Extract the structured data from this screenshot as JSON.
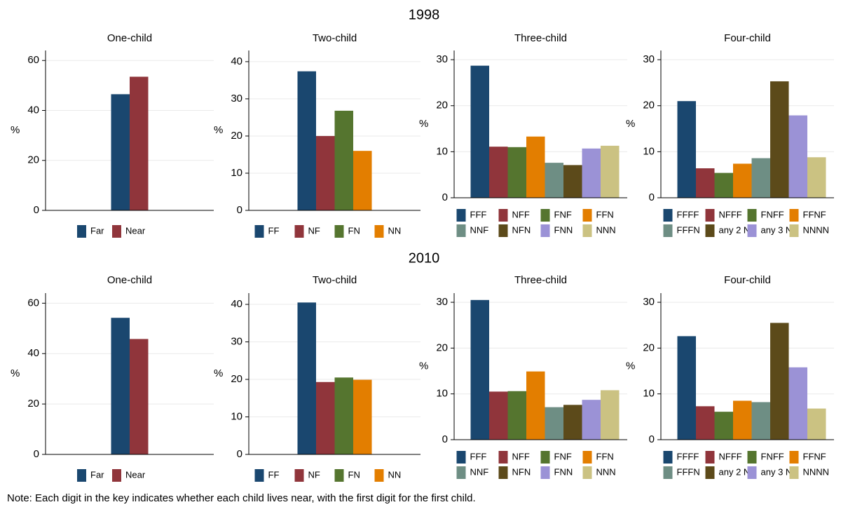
{
  "row_titles": [
    "1998",
    "2010"
  ],
  "note": "Note: Each digit in the key indicates whether each child lives near, with the first digit for the first child.",
  "chart_data": [
    {
      "type": "bar",
      "title": "One-child",
      "ylabel": "%",
      "categories": [
        "Far",
        "Near"
      ],
      "values": [
        46.5,
        53.5
      ],
      "colors": [
        "#1a476f",
        "#90353b"
      ],
      "ylim": [
        0,
        64
      ],
      "yticks": [
        0,
        20,
        40,
        60
      ],
      "grid": true,
      "legend": "bottom"
    },
    {
      "type": "bar",
      "title": "Two-child",
      "ylabel": "%",
      "categories": [
        "FF",
        "NF",
        "FN",
        "NN"
      ],
      "values": [
        37.4,
        20,
        26.8,
        16
      ],
      "colors": [
        "#1a476f",
        "#90353b",
        "#55752f",
        "#e37e00"
      ],
      "ylim": [
        0,
        43
      ],
      "yticks": [
        0,
        10,
        20,
        30,
        40
      ],
      "grid": true,
      "legend": "bottom"
    },
    {
      "type": "bar",
      "title": "Three-child",
      "ylabel": "%",
      "categories": [
        "FFF",
        "NFF",
        "FNF",
        "FFN",
        "NNF",
        "NFN",
        "FNN",
        "NNN"
      ],
      "values": [
        28.7,
        11.1,
        11,
        13.3,
        7.6,
        7.1,
        10.7,
        11.3
      ],
      "colors": [
        "#1a476f",
        "#90353b",
        "#55752f",
        "#e37e00",
        "#6e8e84",
        "#5c4a1a",
        "#9b92d6",
        "#cbc282"
      ],
      "ylim": [
        0,
        32
      ],
      "yticks": [
        0,
        10,
        20,
        30
      ],
      "grid": true,
      "legend": "bottom"
    },
    {
      "type": "bar",
      "title": "Four-child",
      "ylabel": "%",
      "categories": [
        "FFFF",
        "NFFF",
        "FNFF",
        "FFNF",
        "FFFN",
        "any 2 N",
        "any 3 N",
        "NNNN"
      ],
      "values": [
        21,
        6.4,
        5.4,
        7.4,
        8.6,
        25.3,
        17.9,
        8.8
      ],
      "colors": [
        "#1a476f",
        "#90353b",
        "#55752f",
        "#e37e00",
        "#6e8e84",
        "#5c4a1a",
        "#9b92d6",
        "#cbc282"
      ],
      "ylim": [
        0,
        32
      ],
      "yticks": [
        0,
        10,
        20,
        30
      ],
      "grid": true,
      "legend": "bottom"
    },
    {
      "type": "bar",
      "title": "One-child",
      "ylabel": "%",
      "categories": [
        "Far",
        "Near"
      ],
      "values": [
        54.2,
        45.8
      ],
      "colors": [
        "#1a476f",
        "#90353b"
      ],
      "ylim": [
        0,
        64
      ],
      "yticks": [
        0,
        20,
        40,
        60
      ],
      "grid": true,
      "legend": "bottom"
    },
    {
      "type": "bar",
      "title": "Two-child",
      "ylabel": "%",
      "categories": [
        "FF",
        "NF",
        "FN",
        "NN"
      ],
      "values": [
        40.5,
        19.3,
        20.5,
        19.9
      ],
      "colors": [
        "#1a476f",
        "#90353b",
        "#55752f",
        "#e37e00"
      ],
      "ylim": [
        0,
        43
      ],
      "yticks": [
        0,
        10,
        20,
        30,
        40
      ],
      "grid": true,
      "legend": "bottom"
    },
    {
      "type": "bar",
      "title": "Three-child",
      "ylabel": "%",
      "categories": [
        "FFF",
        "NFF",
        "FNF",
        "FFN",
        "NNF",
        "NFN",
        "FNN",
        "NNN"
      ],
      "values": [
        30.5,
        10.5,
        10.6,
        14.9,
        7.1,
        7.6,
        8.7,
        10.8
      ],
      "colors": [
        "#1a476f",
        "#90353b",
        "#55752f",
        "#e37e00",
        "#6e8e84",
        "#5c4a1a",
        "#9b92d6",
        "#cbc282"
      ],
      "ylim": [
        0,
        32
      ],
      "yticks": [
        0,
        10,
        20,
        30
      ],
      "grid": true,
      "legend": "bottom"
    },
    {
      "type": "bar",
      "title": "Four-child",
      "ylabel": "%",
      "categories": [
        "FFFF",
        "NFFF",
        "FNFF",
        "FFNF",
        "FFFN",
        "any 2 N",
        "any 3 N",
        "NNNN"
      ],
      "values": [
        22.6,
        7.3,
        6.1,
        8.5,
        8.2,
        25.5,
        15.8,
        6.8
      ],
      "colors": [
        "#1a476f",
        "#90353b",
        "#55752f",
        "#e37e00",
        "#6e8e84",
        "#5c4a1a",
        "#9b92d6",
        "#cbc282"
      ],
      "ylim": [
        0,
        32
      ],
      "yticks": [
        0,
        10,
        20,
        30
      ],
      "grid": true,
      "legend": "bottom"
    }
  ]
}
